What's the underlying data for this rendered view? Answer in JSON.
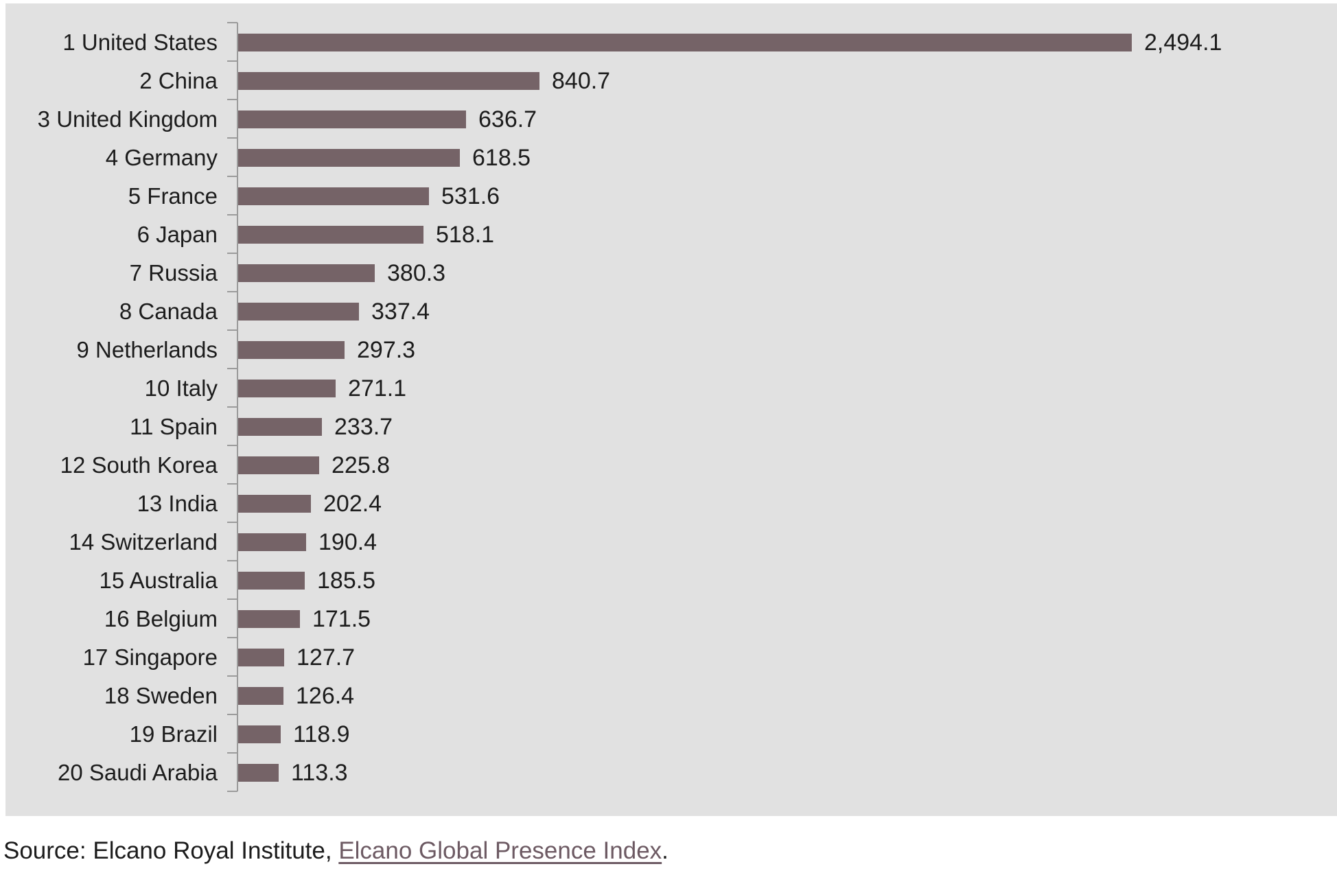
{
  "chart_data": {
    "type": "bar",
    "orientation": "horizontal",
    "title": "",
    "xlabel": "",
    "ylabel": "",
    "gridlines": false,
    "legend": "none",
    "value_axis_visible": false,
    "max_value": 2494.1,
    "categories": [
      "1 United States",
      "2 China",
      "3 United Kingdom",
      "4 Germany",
      "5 France",
      "6 Japan",
      "7 Russia",
      "8 Canada",
      "9 Netherlands",
      "10 Italy",
      "11 Spain",
      "12 South Korea",
      "13 India",
      "14 Switzerland",
      "15 Australia",
      "16 Belgium",
      "17 Singapore",
      "18 Sweden",
      "19 Brazil",
      "20 Saudi Arabia"
    ],
    "rows": [
      {
        "rank": "1",
        "country": "United States",
        "axis_label": "1 United States",
        "value": 2494.1,
        "value_label": "2,494.1"
      },
      {
        "rank": "2",
        "country": "China",
        "axis_label": "2 China",
        "value": 840.7,
        "value_label": "840.7"
      },
      {
        "rank": "3",
        "country": "United Kingdom",
        "axis_label": "3 United Kingdom",
        "value": 636.7,
        "value_label": "636.7"
      },
      {
        "rank": "4",
        "country": "Germany",
        "axis_label": "4 Germany",
        "value": 618.5,
        "value_label": "618.5"
      },
      {
        "rank": "5",
        "country": "France",
        "axis_label": "5 France",
        "value": 531.6,
        "value_label": "531.6"
      },
      {
        "rank": "6",
        "country": "Japan",
        "axis_label": "6 Japan",
        "value": 518.1,
        "value_label": "518.1"
      },
      {
        "rank": "7",
        "country": "Russia",
        "axis_label": "7 Russia",
        "value": 380.3,
        "value_label": "380.3"
      },
      {
        "rank": "8",
        "country": "Canada",
        "axis_label": "8 Canada",
        "value": 337.4,
        "value_label": "337.4"
      },
      {
        "rank": "9",
        "country": "Netherlands",
        "axis_label": "9 Netherlands",
        "value": 297.3,
        "value_label": "297.3"
      },
      {
        "rank": "10",
        "country": "Italy",
        "axis_label": "10 Italy",
        "value": 271.1,
        "value_label": "271.1"
      },
      {
        "rank": "11",
        "country": "Spain",
        "axis_label": "11 Spain",
        "value": 233.7,
        "value_label": "233.7"
      },
      {
        "rank": "12",
        "country": "South Korea",
        "axis_label": "12 South Korea",
        "value": 225.8,
        "value_label": "225.8"
      },
      {
        "rank": "13",
        "country": "India",
        "axis_label": "13 India",
        "value": 202.4,
        "value_label": "202.4"
      },
      {
        "rank": "14",
        "country": "Switzerland",
        "axis_label": "14 Switzerland",
        "value": 190.4,
        "value_label": "190.4"
      },
      {
        "rank": "15",
        "country": "Australia",
        "axis_label": "15 Australia",
        "value": 185.5,
        "value_label": "185.5"
      },
      {
        "rank": "16",
        "country": "Belgium",
        "axis_label": "16 Belgium",
        "value": 171.5,
        "value_label": "171.5"
      },
      {
        "rank": "17",
        "country": "Singapore",
        "axis_label": "17 Singapore",
        "value": 127.7,
        "value_label": "127.7"
      },
      {
        "rank": "18",
        "country": "Sweden",
        "axis_label": "18 Sweden",
        "value": 126.4,
        "value_label": "126.4"
      },
      {
        "rank": "19",
        "country": "Brazil",
        "axis_label": "19 Brazil",
        "value": 118.9,
        "value_label": "118.9"
      },
      {
        "rank": "20",
        "country": "Saudi Arabia",
        "axis_label": "20 Saudi Arabia",
        "value": 113.3,
        "value_label": "113.3"
      }
    ]
  },
  "source_line": {
    "prefix": "Source: Elcano Royal Institute, ",
    "link_text": "Elcano Global Presence Index",
    "suffix": "."
  },
  "colors": {
    "page_background": "#ffffff",
    "chart_background": "#e1e1e1",
    "bar": "#756367",
    "axis": "#9b9b9b",
    "label_text": "#1c1c1c",
    "link": "#6d5a63"
  }
}
